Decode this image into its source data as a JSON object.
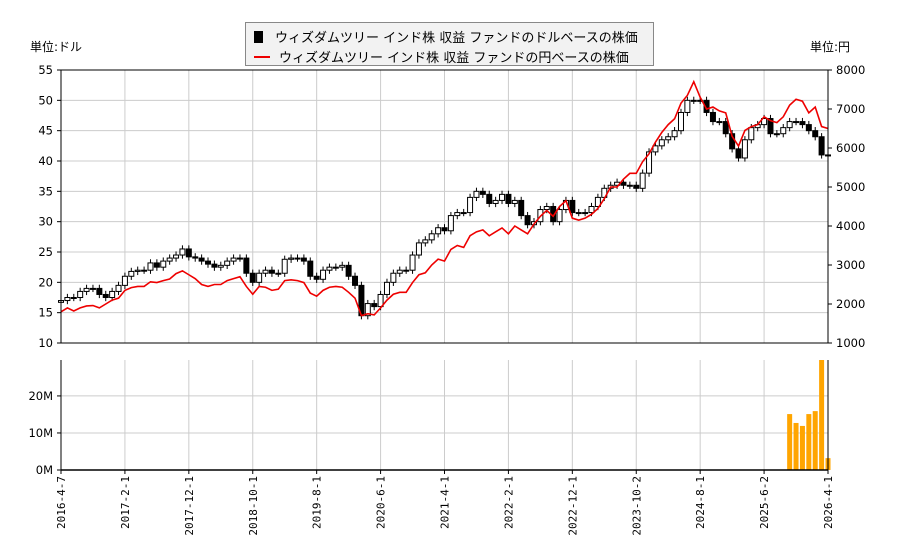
{
  "units": {
    "left": "単位:ドル",
    "right": "単位:円"
  },
  "legend": [
    {
      "label": "ウィズダムツリー インド株 収益 ファンドのドルベースの株価",
      "color": "#000000",
      "marker": "square"
    },
    {
      "label": "ウィズダムツリー インド株 収益 ファンドの円ベースの株価",
      "color": "#ee0000",
      "marker": "line"
    }
  ],
  "chart_data": [
    {
      "type": "candlestick+line",
      "start_month": "2016-04",
      "interval": "monthly",
      "y_left": {
        "lim": [
          10,
          55
        ],
        "ticks": [
          10,
          15,
          20,
          25,
          30,
          35,
          40,
          45,
          50,
          55
        ]
      },
      "y_right": {
        "lim": [
          1000,
          8000
        ],
        "ticks": [
          1000,
          2000,
          3000,
          4000,
          5000,
          6000,
          7000,
          8000
        ]
      },
      "x_ticks": [
        {
          "label": "2016-4-7",
          "month_index": 0
        },
        {
          "label": "2017-2-1",
          "month_index": 10
        },
        {
          "label": "2017-12-1",
          "month_index": 20
        },
        {
          "label": "2018-10-1",
          "month_index": 30
        },
        {
          "label": "2019-8-1",
          "month_index": 40
        },
        {
          "label": "2020-6-1",
          "month_index": 50
        },
        {
          "label": "2021-4-1",
          "month_index": 60
        },
        {
          "label": "2022-2-1",
          "month_index": 70
        },
        {
          "label": "2022-12-1",
          "month_index": 80
        },
        {
          "label": "2023-10-2",
          "month_index": 90
        },
        {
          "label": "2024-8-1",
          "month_index": 100
        },
        {
          "label": "2025-6-2",
          "month_index": 110
        },
        {
          "label": "2026-4-1",
          "month_index": 120
        }
      ],
      "grid": true,
      "usd_close": [
        17,
        17.5,
        17.5,
        18.5,
        19,
        19,
        18,
        17.5,
        18.5,
        19.5,
        21,
        21.8,
        22,
        22,
        23.2,
        22.5,
        23.5,
        24,
        24.5,
        25.5,
        24.2,
        24,
        23.5,
        23,
        22.5,
        22.8,
        23.5,
        24,
        24,
        21.5,
        20,
        21.5,
        22,
        21.5,
        21.5,
        23.8,
        24,
        24,
        23.5,
        21,
        20.5,
        22,
        22.5,
        22.5,
        22.8,
        21,
        19.5,
        14.5,
        16.5,
        16,
        18,
        20,
        21.5,
        22,
        22,
        24.5,
        26.5,
        27,
        28,
        29,
        28.5,
        31,
        31.5,
        31.5,
        34,
        35,
        34.5,
        33,
        33.5,
        34.5,
        33,
        33.5,
        31,
        29.5,
        30,
        32,
        32.5,
        30,
        32,
        33.5,
        31.5,
        31.5,
        31.5,
        32.5,
        34,
        35.5,
        36,
        36.5,
        36,
        36,
        35.5,
        38,
        41.5,
        42.5,
        43.5,
        44,
        45,
        48,
        50,
        50,
        50,
        48,
        46.5,
        46.5,
        44.5,
        42,
        40.5,
        43.5,
        45.5,
        46,
        47,
        44.5,
        44.5,
        45.5,
        46.5,
        46.5,
        46,
        45,
        44,
        41,
        41
      ],
      "jpy_close": [
        1800,
        1900,
        1820,
        1900,
        1950,
        1960,
        1900,
        2000,
        2100,
        2150,
        2350,
        2420,
        2450,
        2450,
        2570,
        2550,
        2600,
        2640,
        2780,
        2850,
        2750,
        2650,
        2500,
        2450,
        2500,
        2500,
        2600,
        2650,
        2700,
        2450,
        2250,
        2450,
        2430,
        2350,
        2380,
        2600,
        2620,
        2600,
        2550,
        2280,
        2200,
        2350,
        2430,
        2450,
        2430,
        2300,
        2150,
        1700,
        1750,
        1720,
        1900,
        2100,
        2250,
        2300,
        2300,
        2550,
        2750,
        2800,
        3000,
        3150,
        3100,
        3400,
        3500,
        3450,
        3750,
        3850,
        3900,
        3750,
        3850,
        3950,
        3800,
        4000,
        3900,
        3800,
        4050,
        4250,
        4400,
        4250,
        4500,
        4650,
        4200,
        4150,
        4200,
        4300,
        4450,
        4700,
        5000,
        5000,
        5200,
        5350,
        5350,
        5650,
        5850,
        6150,
        6400,
        6600,
        6750,
        7150,
        7350,
        7700,
        7300,
        7000,
        7050,
        6950,
        6900,
        6300,
        6050,
        6450,
        6550,
        6600,
        6800,
        6700,
        6650,
        6800,
        7100,
        7250,
        7200,
        6900,
        7050,
        6550,
        6500
      ]
    },
    {
      "type": "bar",
      "y_lim_millions": [
        0,
        29.7
      ],
      "y_ticks": [
        {
          "label": "0M",
          "value": 0
        },
        {
          "label": "10M",
          "value": 10
        },
        {
          "label": "20M",
          "value": 20
        }
      ],
      "color": "#ffa500",
      "bars": [
        {
          "month": "2025-10",
          "value_millions": 15.1
        },
        {
          "month": "2025-11",
          "value_millions": 12.7
        },
        {
          "month": "2025-12",
          "value_millions": 11.9
        },
        {
          "month": "2026-01",
          "value_millions": 15.1
        },
        {
          "month": "2026-02",
          "value_millions": 15.9
        },
        {
          "month": "2026-03",
          "value_millions": 29.7
        },
        {
          "month": "2026-04",
          "value_millions": 3.2
        }
      ]
    }
  ]
}
